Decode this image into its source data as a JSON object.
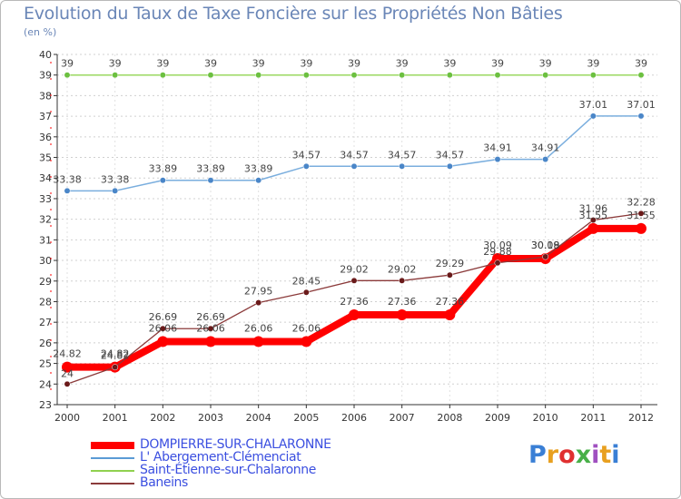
{
  "header": {
    "title": "Evolution du Taux de Taxe Foncière sur les Propriétés Non Bâties",
    "unit": "(en %)"
  },
  "logo": {
    "text": "Proxiti",
    "colors": [
      "#3a7fd5",
      "#e8a020",
      "#e03030",
      "#48b048",
      "#a050c0",
      "#e8a020",
      "#3a7fd5"
    ]
  },
  "chart_data": {
    "type": "line",
    "title": "Evolution du Taux de Taxe Foncière sur les Propriétés Non Bâties",
    "ylabel": "(en %)",
    "xlabel": "",
    "ylim": [
      23,
      40
    ],
    "yticks": [
      23,
      24,
      25,
      26,
      27,
      28,
      29,
      30,
      31,
      32,
      33,
      34,
      35,
      36,
      37,
      38,
      39,
      40
    ],
    "categories": [
      "2000",
      "2001",
      "2002",
      "2003",
      "2004",
      "2005",
      "2006",
      "2007",
      "2008",
      "2009",
      "2010",
      "2011",
      "2012"
    ],
    "grid": "horizontal dotted",
    "legend_position": "bottom",
    "series": [
      {
        "name": "DOMPIERRE-SUR-CHALARONNE",
        "color": "#ff0000",
        "values": [
          24.82,
          24.82,
          26.06,
          26.06,
          26.06,
          26.06,
          27.36,
          27.36,
          27.36,
          30.09,
          30.09,
          31.55,
          31.55
        ],
        "labels": [
          "24.82",
          "24.82",
          "26.06",
          "26.06",
          "26.06",
          "26.06",
          "27.36",
          "27.36",
          "27.36",
          "30.09",
          "30.09",
          "31.55",
          "31.55"
        ]
      },
      {
        "name": "L' Abergement-Clémenciat",
        "color": "#5b9bd5",
        "values": [
          33.38,
          33.38,
          33.89,
          33.89,
          33.89,
          34.57,
          34.57,
          34.57,
          34.57,
          34.91,
          34.91,
          37.01,
          37.01
        ],
        "labels": [
          "33.38",
          "33.38",
          "33.89",
          "33.89",
          "33.89",
          "34.57",
          "34.57",
          "34.57",
          "34.57",
          "34.91",
          "34.91",
          "37.01",
          "37.01"
        ]
      },
      {
        "name": "Saint-Étienne-sur-Chalaronne",
        "color": "#8fd14f",
        "values": [
          39,
          39,
          39,
          39,
          39,
          39,
          39,
          39,
          39,
          39,
          39,
          39,
          39
        ],
        "labels": [
          "39",
          "39",
          "39",
          "39",
          "39",
          "39",
          "39",
          "39",
          "39",
          "39",
          "39",
          "39",
          "39"
        ]
      },
      {
        "name": "Baneins",
        "color": "#8b3a3a",
        "values": [
          24,
          24.82,
          26.69,
          26.69,
          27.95,
          28.45,
          29.02,
          29.02,
          29.29,
          29.88,
          30.18,
          31.96,
          32.28
        ],
        "labels": [
          "24",
          "24.82",
          "26.69",
          "26.69",
          "27.95",
          "28.45",
          "29.02",
          "29.02",
          "29.29",
          "29.88",
          "30.18",
          "31.96",
          "32.28"
        ]
      }
    ]
  }
}
